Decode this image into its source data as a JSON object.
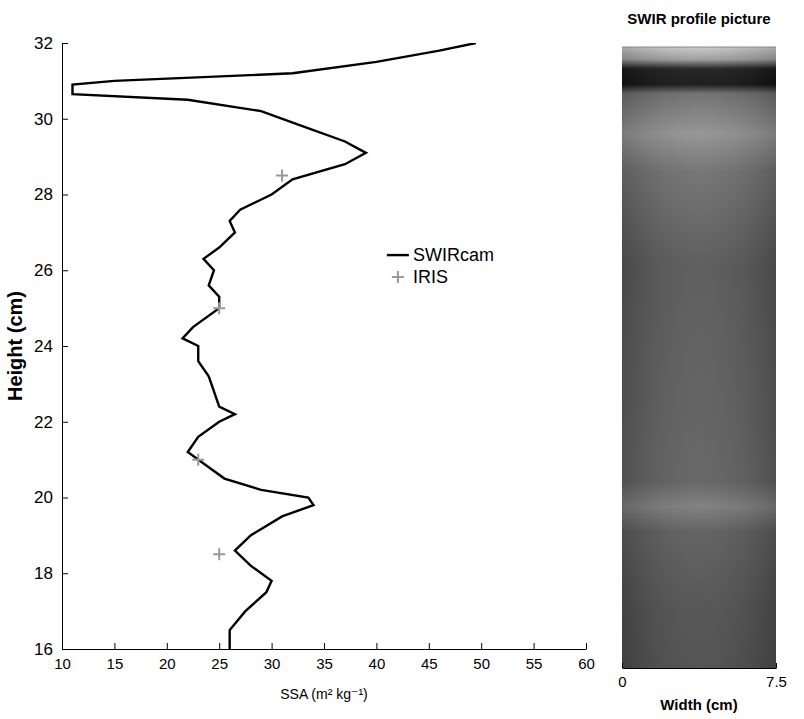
{
  "chart_data": [
    {
      "type": "line",
      "x_label": "SSA (m² kg⁻¹)",
      "y_label": "Height (cm)",
      "xlim": [
        10,
        60
      ],
      "xticks": [
        10,
        15,
        20,
        25,
        30,
        35,
        40,
        45,
        50,
        55,
        60
      ],
      "ylim": [
        16,
        32
      ],
      "yticks": [
        16,
        18,
        20,
        22,
        24,
        26,
        28,
        30,
        32
      ],
      "legend": "right",
      "series": [
        {
          "name": "SWIRcam",
          "type": "line",
          "color": "#000000",
          "line_style": "solid",
          "x": [
            26,
            26,
            27.5,
            29.5,
            30,
            28,
            26.5,
            28,
            31,
            34,
            33.5,
            29,
            25.5,
            24,
            22,
            23,
            25,
            26.5,
            25,
            24.5,
            24,
            23,
            23,
            21.5,
            22.5,
            25,
            25,
            24,
            24.5,
            23.5,
            25,
            26.5,
            26,
            27,
            30,
            32,
            37,
            39,
            37,
            33,
            29,
            22,
            11,
            11,
            15,
            32,
            40,
            46,
            49.5
          ],
          "y": [
            16,
            16.5,
            17,
            17.5,
            17.8,
            18.2,
            18.6,
            19,
            19.5,
            19.8,
            20,
            20.2,
            20.5,
            20.8,
            21.2,
            21.6,
            22,
            22.2,
            22.4,
            22.8,
            23.2,
            23.6,
            24,
            24.2,
            24.5,
            25,
            25.3,
            25.6,
            26,
            26.3,
            26.6,
            27,
            27.3,
            27.6,
            28,
            28.4,
            28.8,
            29.1,
            29.4,
            29.8,
            30.2,
            30.5,
            30.65,
            30.9,
            31,
            31.2,
            31.5,
            31.8,
            32
          ]
        },
        {
          "name": "IRIS",
          "type": "scatter",
          "color": "#999999",
          "marker": "plus",
          "x": [
            31,
            25,
            23,
            25
          ],
          "y": [
            28.5,
            25,
            21,
            18.5
          ]
        }
      ]
    },
    {
      "type": "image",
      "title": "SWIR profile picture",
      "x_label": "Width (cm)",
      "xlim": [
        0,
        7.5
      ],
      "xticks": [
        0,
        7.5
      ]
    }
  ]
}
